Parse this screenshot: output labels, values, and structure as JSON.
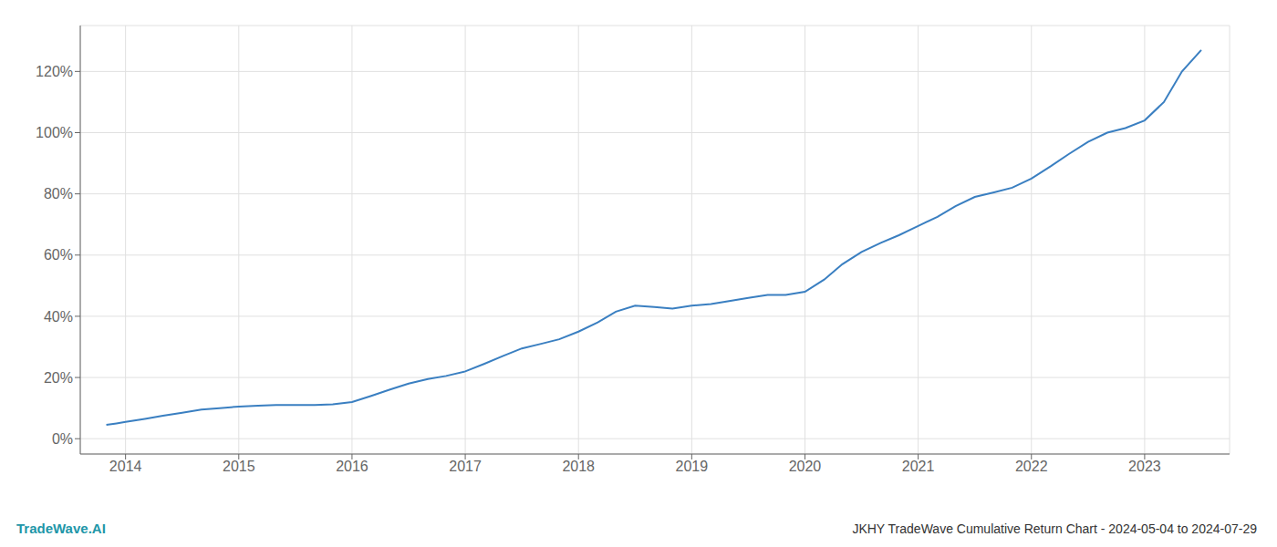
{
  "chart_data": {
    "type": "line",
    "title": "JKHY TradeWave Cumulative Return Chart - 2024-05-04 to 2024-07-29",
    "annotations": [
      "TradeWave.AI"
    ],
    "color": "#3a7fc1",
    "grid": true,
    "xlim": [
      2013.6,
      2023.75
    ],
    "ylim": [
      -5,
      135
    ],
    "xticks": [
      2014,
      2015,
      2016,
      2017,
      2018,
      2019,
      2020,
      2021,
      2022,
      2023
    ],
    "yticks": [
      {
        "value": 0,
        "label": "0%"
      },
      {
        "value": 20,
        "label": "20%"
      },
      {
        "value": 40,
        "label": "40%"
      },
      {
        "value": 60,
        "label": "60%"
      },
      {
        "value": 80,
        "label": "80%"
      },
      {
        "value": 100,
        "label": "100%"
      },
      {
        "value": 120,
        "label": "120%"
      }
    ],
    "x": [
      2013.83,
      2013.92,
      2014.0,
      2014.17,
      2014.33,
      2014.5,
      2014.67,
      2014.83,
      2015.0,
      2015.17,
      2015.33,
      2015.5,
      2015.67,
      2015.83,
      2016.0,
      2016.17,
      2016.33,
      2016.5,
      2016.67,
      2016.83,
      2017.0,
      2017.17,
      2017.33,
      2017.5,
      2017.67,
      2017.83,
      2018.0,
      2018.17,
      2018.33,
      2018.5,
      2018.67,
      2018.83,
      2019.0,
      2019.17,
      2019.33,
      2019.5,
      2019.67,
      2019.83,
      2020.0,
      2020.17,
      2020.33,
      2020.5,
      2020.67,
      2020.83,
      2021.0,
      2021.17,
      2021.33,
      2021.5,
      2021.67,
      2021.83,
      2022.0,
      2022.17,
      2022.33,
      2022.5,
      2022.67,
      2022.83,
      2023.0,
      2023.17,
      2023.33,
      2023.5
    ],
    "values": [
      4.5,
      5.0,
      5.5,
      6.5,
      7.5,
      8.5,
      9.5,
      10.0,
      10.5,
      10.8,
      11.0,
      11.0,
      11.0,
      11.2,
      12.0,
      14.0,
      16.0,
      18.0,
      19.5,
      20.5,
      22.0,
      24.5,
      27.0,
      29.5,
      31.0,
      32.5,
      35.0,
      38.0,
      41.5,
      43.5,
      43.0,
      42.5,
      43.5,
      44.0,
      45.0,
      46.0,
      47.0,
      47.0,
      48.0,
      52.0,
      57.0,
      61.0,
      64.0,
      66.5,
      69.5,
      72.5,
      76.0,
      79.0,
      80.5,
      82.0,
      85.0,
      89.0,
      93.0,
      97.0,
      100.0,
      101.5,
      104.0,
      110.0,
      120.0,
      127.0
    ]
  }
}
